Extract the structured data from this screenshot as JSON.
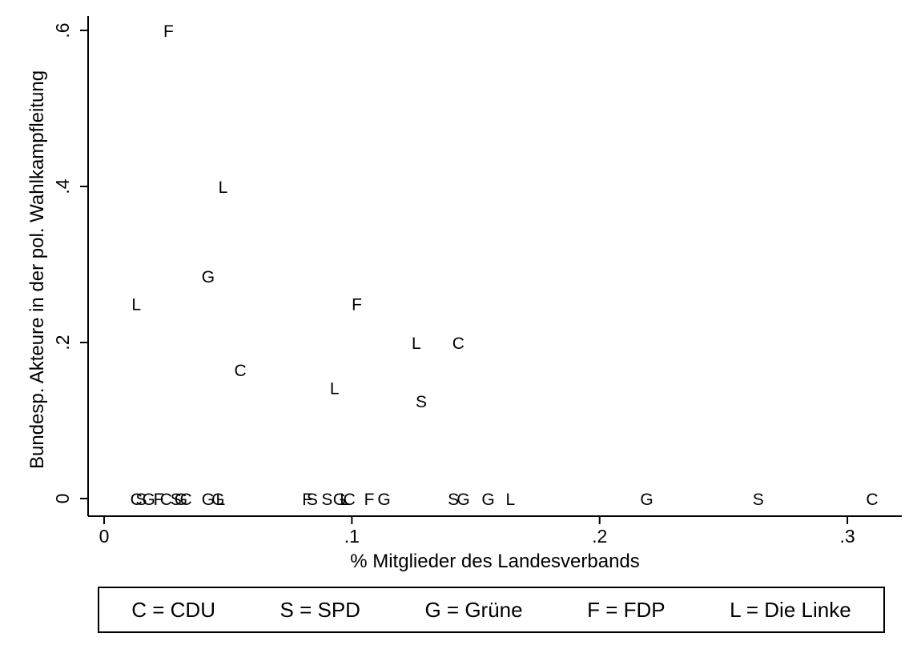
{
  "chart_data": {
    "type": "scatter",
    "xlabel": "% Mitglieder des Landesverbands",
    "ylabel": "Bundesp. Akteure in der pol. Wahlkampfleitung",
    "xlim": [
      0,
      0.31
    ],
    "ylim": [
      0,
      0.6
    ],
    "x_ticks": [
      {
        "value": 0,
        "label": "0"
      },
      {
        "value": 0.1,
        "label": ".1"
      },
      {
        "value": 0.2,
        "label": ".2"
      },
      {
        "value": 0.3,
        "label": ".3"
      }
    ],
    "y_ticks": [
      {
        "value": 0,
        "label": "0"
      },
      {
        "value": 0.2,
        "label": ".2"
      },
      {
        "value": 0.4,
        "label": ".4"
      },
      {
        "value": 0.6,
        "label": ".6"
      }
    ],
    "points": [
      {
        "marker": "F",
        "x": 0.026,
        "y": 0.6
      },
      {
        "marker": "L",
        "x": 0.048,
        "y": 0.4
      },
      {
        "marker": "G",
        "x": 0.042,
        "y": 0.285
      },
      {
        "marker": "L",
        "x": 0.013,
        "y": 0.25
      },
      {
        "marker": "F",
        "x": 0.102,
        "y": 0.25
      },
      {
        "marker": "L",
        "x": 0.126,
        "y": 0.2
      },
      {
        "marker": "C",
        "x": 0.143,
        "y": 0.2
      },
      {
        "marker": "C",
        "x": 0.055,
        "y": 0.165
      },
      {
        "marker": "L",
        "x": 0.093,
        "y": 0.142
      },
      {
        "marker": "S",
        "x": 0.128,
        "y": 0.125
      },
      {
        "marker": "C",
        "x": 0.013,
        "y": 0
      },
      {
        "marker": "S",
        "x": 0.015,
        "y": 0
      },
      {
        "marker": "G",
        "x": 0.018,
        "y": 0
      },
      {
        "marker": "F",
        "x": 0.022,
        "y": 0
      },
      {
        "marker": "C",
        "x": 0.025,
        "y": 0
      },
      {
        "marker": "S",
        "x": 0.029,
        "y": 0
      },
      {
        "marker": "G",
        "x": 0.031,
        "y": 0
      },
      {
        "marker": "C",
        "x": 0.033,
        "y": 0
      },
      {
        "marker": "G",
        "x": 0.042,
        "y": 0
      },
      {
        "marker": "G",
        "x": 0.046,
        "y": 0
      },
      {
        "marker": "L",
        "x": 0.047,
        "y": 0
      },
      {
        "marker": "F",
        "x": 0.082,
        "y": 0
      },
      {
        "marker": "S",
        "x": 0.084,
        "y": 0
      },
      {
        "marker": "S",
        "x": 0.09,
        "y": 0
      },
      {
        "marker": "G",
        "x": 0.095,
        "y": 0
      },
      {
        "marker": "C",
        "x": 0.099,
        "y": 0
      },
      {
        "marker": "L",
        "x": 0.097,
        "y": 0
      },
      {
        "marker": "F",
        "x": 0.107,
        "y": 0
      },
      {
        "marker": "G",
        "x": 0.113,
        "y": 0
      },
      {
        "marker": "S",
        "x": 0.141,
        "y": 0
      },
      {
        "marker": "G",
        "x": 0.145,
        "y": 0
      },
      {
        "marker": "G",
        "x": 0.155,
        "y": 0
      },
      {
        "marker": "L",
        "x": 0.164,
        "y": 0
      },
      {
        "marker": "G",
        "x": 0.219,
        "y": 0
      },
      {
        "marker": "S",
        "x": 0.264,
        "y": 0
      },
      {
        "marker": "C",
        "x": 0.31,
        "y": 0
      }
    ],
    "legend": [
      {
        "marker": "C",
        "party": "CDU",
        "text": "C = CDU"
      },
      {
        "marker": "S",
        "party": "SPD",
        "text": "S = SPD"
      },
      {
        "marker": "G",
        "party": "Grüne",
        "text": "G = Grüne"
      },
      {
        "marker": "F",
        "party": "FDP",
        "text": "F = FDP"
      },
      {
        "marker": "L",
        "party": "Die Linke",
        "text": "L = Die Linke"
      }
    ],
    "legend_position": "bottom",
    "grid": false
  }
}
